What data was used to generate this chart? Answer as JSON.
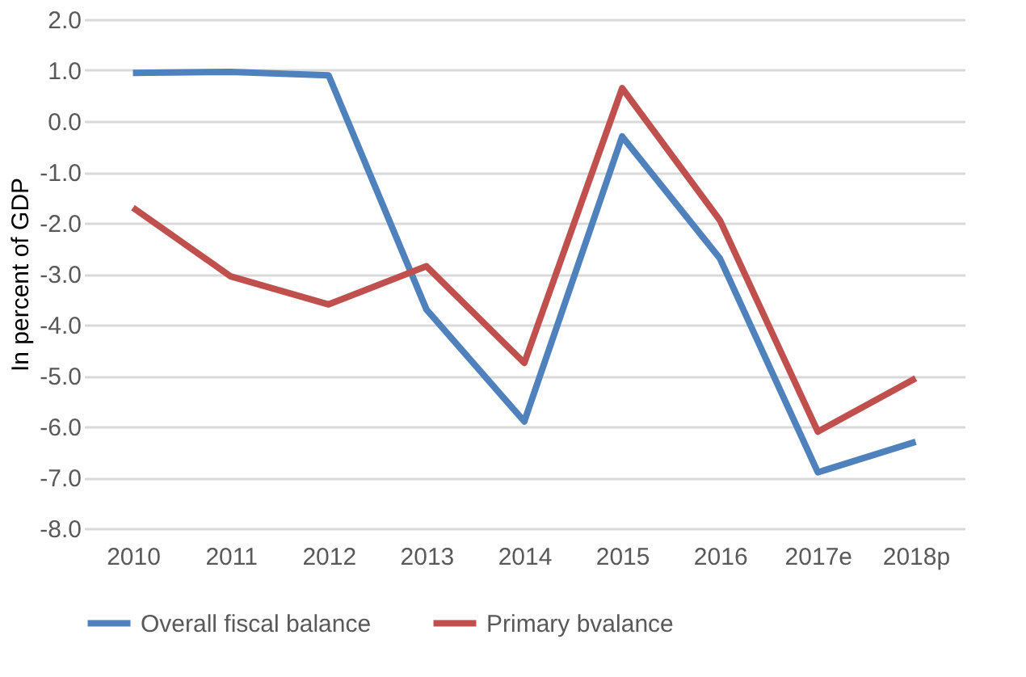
{
  "chart_data": {
    "type": "line",
    "ylabel": "In percent of GDP",
    "categories": [
      "2010",
      "2011",
      "2012",
      "2013",
      "2014",
      "2015",
      "2016",
      "2017e",
      "2018p"
    ],
    "series": [
      {
        "name": "Overall fiscal balance",
        "color": "#4f81bd",
        "values": [
          0.95,
          0.97,
          0.9,
          -3.7,
          -5.9,
          -0.3,
          -2.7,
          -6.9,
          -6.3
        ]
      },
      {
        "name": "Primary bvalance",
        "color": "#c0504d",
        "values": [
          -1.7,
          -3.05,
          -3.6,
          -2.85,
          -4.75,
          0.65,
          -1.95,
          -6.1,
          -5.05
        ]
      }
    ],
    "ylim": [
      -8,
      2
    ],
    "yticks": [
      {
        "value": -8,
        "label": "-8.0"
      },
      {
        "value": -7,
        "label": "-7.0"
      },
      {
        "value": -6,
        "label": "-6.0"
      },
      {
        "value": -5,
        "label": "-5.0"
      },
      {
        "value": -4,
        "label": "-4.0"
      },
      {
        "value": -3,
        "label": "-3.0"
      },
      {
        "value": -2,
        "label": "-2.0"
      },
      {
        "value": -1,
        "label": "-1.0"
      },
      {
        "value": 0,
        "label": "0.0"
      },
      {
        "value": 1,
        "label": "1.0"
      },
      {
        "value": 2,
        "label": "2.0"
      }
    ],
    "grid": "y",
    "legend": "bottom",
    "marker": "none",
    "line_style": "solid"
  }
}
